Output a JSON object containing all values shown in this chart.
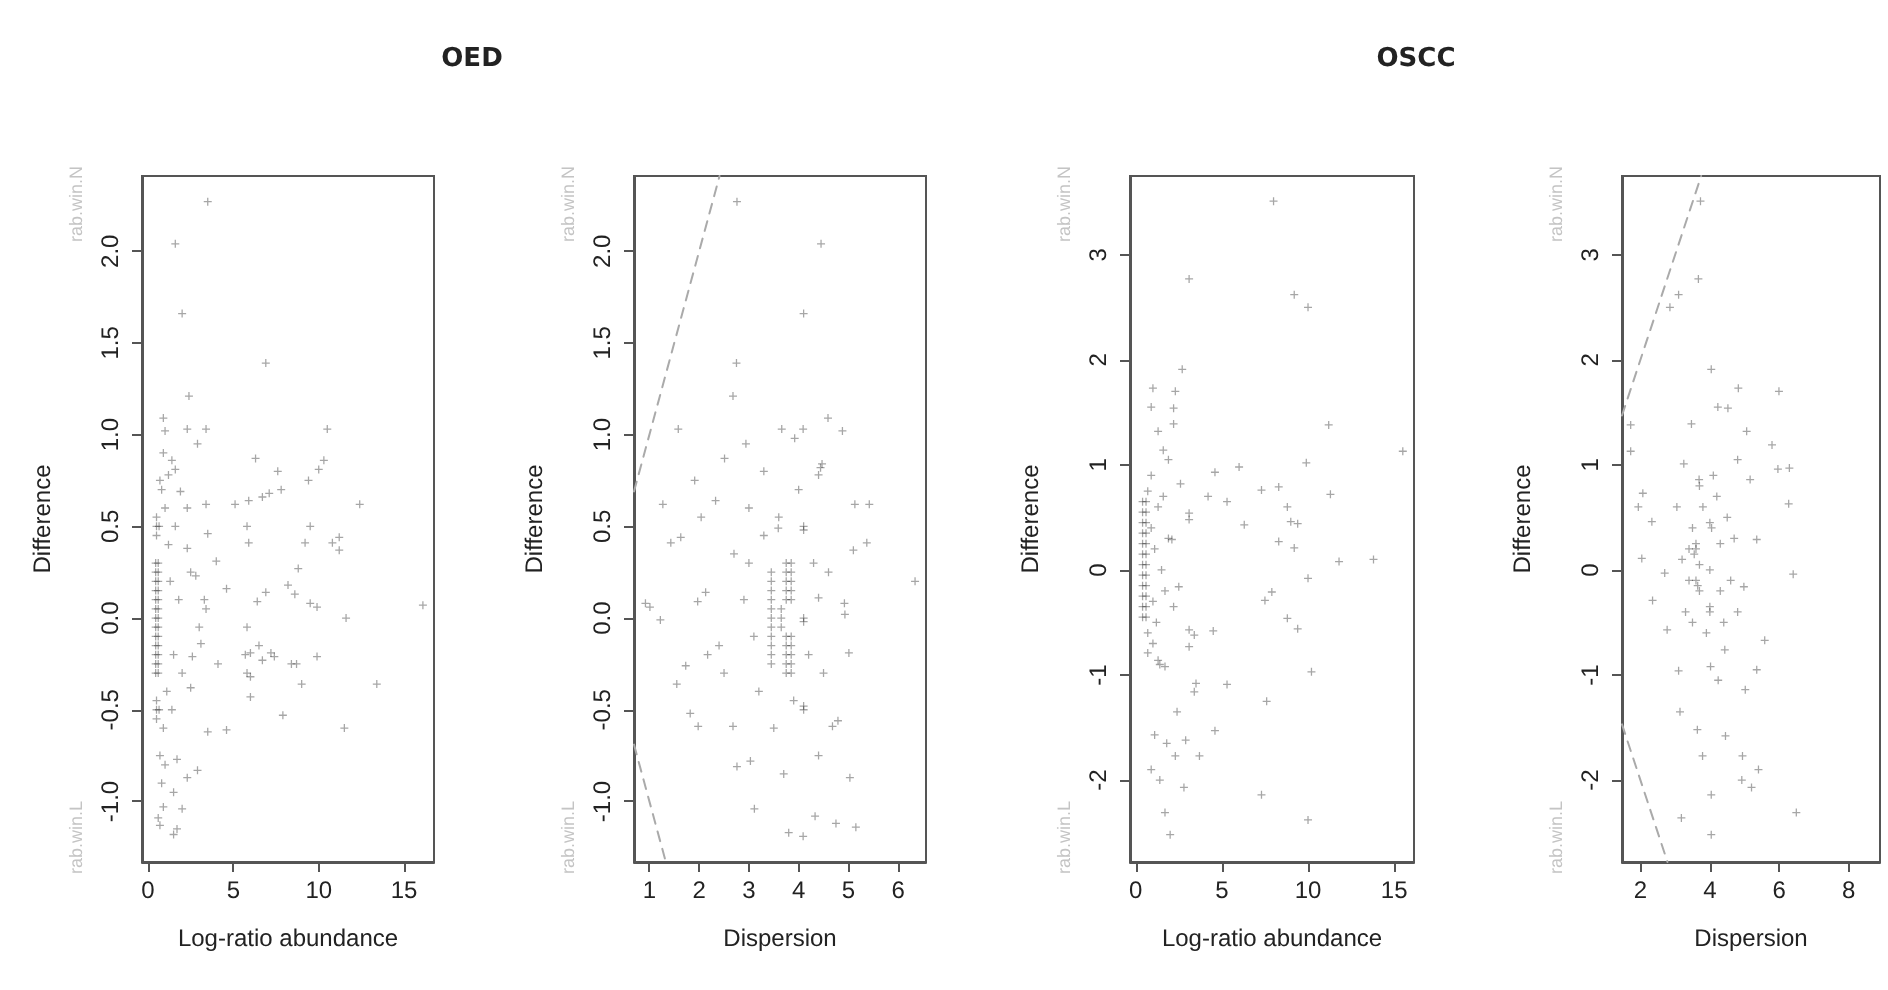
{
  "chart_data": [
    {
      "type": "scatter",
      "title": "OED",
      "xlabel": "Log-ratio abundance",
      "ylabel": "Difference",
      "annotations": [
        "rab.win.N",
        "rab.win.L"
      ],
      "marker": "cross",
      "xlim": [
        -0.35,
        16.75
      ],
      "xticks": [
        0,
        5,
        10,
        15
      ],
      "ylim": [
        -1.33,
        2.41
      ],
      "yticks": [
        {
          "value": -1,
          "label": "-1.0"
        },
        {
          "value": -0.5,
          "label": "-0.5"
        },
        {
          "value": 0,
          "label": "0.0"
        },
        {
          "value": 0.5,
          "label": "0.5"
        },
        {
          "value": 1,
          "label": "1.0"
        },
        {
          "value": 1.5,
          "label": "1.5"
        },
        {
          "value": 2,
          "label": "2.0"
        }
      ],
      "series": [
        {
          "color": "#000000",
          "x": [
            3.5,
            1.6,
            2.0,
            6.9,
            2.4,
            0.9,
            10.5,
            2.3,
            3.4,
            2.9,
            1.0,
            6.3,
            10.3,
            7.6,
            10.0,
            9.4,
            7.1,
            6.7,
            7.8,
            5.1,
            5.9,
            12.4,
            3.4,
            9.5,
            5.8,
            5.9,
            9.2,
            10.8,
            11.2,
            11.2,
            3.5,
            4.0,
            8.8,
            4.6,
            8.2,
            6.9,
            8.6,
            9.5,
            6.4,
            9.9,
            16.1,
            11.6,
            3.4,
            3.3,
            4.1,
            5.7,
            6.0,
            7.2,
            7.4,
            6.7,
            6.5,
            5.8,
            8.4,
            8.7,
            9.9,
            9.0,
            5.8,
            6.0,
            6.0,
            13.4,
            11.5,
            7.9,
            3.5,
            4.6,
            2.9,
            2.3,
            1.5,
            2.0,
            0.9,
            0.6,
            0.7,
            1.5,
            1.7,
            1.7,
            2.5,
            2.6,
            3.1,
            3.0,
            2.8,
            2.5,
            2.3,
            2.3,
            1.9,
            1.6,
            1.4,
            1.2,
            0.45,
            0.45,
            0.45,
            0.45,
            0.45,
            0.45,
            0.45,
            0.45,
            0.45,
            0.45,
            0.45,
            0.45,
            0.45,
            0.6,
            0.6,
            0.6,
            0.6,
            0.6,
            0.6,
            0.6,
            0.6,
            0.6,
            0.6,
            0.6,
            0.6,
            0.6,
            0.5,
            0.5,
            0.5,
            0.5,
            0.5,
            0.5,
            0.65,
            0.65,
            1.0,
            1.2,
            0.9,
            1.1,
            0.8,
            0.7,
            0.7,
            1.3,
            1.5,
            1.0,
            0.9,
            1.8,
            2.0,
            1.6,
            1.4,
            0.8
          ],
          "values": [
            2.27,
            2.04,
            1.66,
            1.39,
            1.21,
            1.09,
            1.03,
            1.03,
            1.03,
            0.95,
            1.02,
            0.87,
            0.86,
            0.8,
            0.81,
            0.75,
            0.68,
            0.66,
            0.7,
            0.62,
            0.64,
            0.62,
            0.62,
            0.5,
            0.5,
            0.41,
            0.41,
            0.41,
            0.44,
            0.37,
            0.46,
            0.31,
            0.27,
            0.16,
            0.18,
            0.14,
            0.13,
            0.08,
            0.09,
            0.06,
            0.07,
            0.0,
            0.05,
            0.1,
            -0.25,
            -0.2,
            -0.19,
            -0.19,
            -0.21,
            -0.23,
            -0.15,
            -0.05,
            -0.25,
            -0.25,
            -0.21,
            -0.36,
            -0.3,
            -0.32,
            -0.43,
            -0.36,
            -0.6,
            -0.53,
            -0.62,
            -0.61,
            -0.83,
            -0.87,
            -0.95,
            -1.04,
            -1.03,
            -1.09,
            -1.13,
            -1.18,
            -1.15,
            -0.77,
            -0.38,
            -0.21,
            -0.14,
            -0.05,
            0.23,
            0.25,
            0.38,
            0.6,
            0.69,
            0.81,
            0.86,
            0.78,
            -0.3,
            -0.25,
            -0.2,
            -0.15,
            -0.1,
            -0.05,
            0,
            0.05,
            0.1,
            0.15,
            0.2,
            0.25,
            0.3,
            -0.3,
            -0.25,
            -0.2,
            -0.15,
            -0.1,
            -0.05,
            0,
            0.05,
            0.1,
            0.15,
            0.2,
            0.25,
            0.3,
            -0.55,
            -0.5,
            -0.45,
            0.45,
            0.5,
            0.55,
            -0.5,
            0.5,
            0.6,
            0.4,
            -0.6,
            -0.4,
            0.7,
            -0.75,
            0.75,
            0.2,
            -0.2,
            -0.8,
            0.9,
            0.1,
            -0.3,
            0.5,
            -0.5,
            -0.9
          ]
        }
      ]
    },
    {
      "type": "scatter",
      "xlabel": "Dispersion",
      "ylabel": "Difference",
      "annotations": [
        "rab.win.N",
        "rab.win.L"
      ],
      "marker": "cross",
      "xlim": [
        0.69,
        6.56
      ],
      "xticks": [
        1,
        2,
        3,
        4,
        5,
        6
      ],
      "ylim": [
        -1.33,
        2.41
      ],
      "yticks": [
        {
          "value": -1,
          "label": "-1.0"
        },
        {
          "value": -0.5,
          "label": "-0.5"
        },
        {
          "value": 0,
          "label": "0.0"
        },
        {
          "value": 0.5,
          "label": "0.5"
        },
        {
          "value": 1,
          "label": "1.0"
        },
        {
          "value": 1.5,
          "label": "1.5"
        },
        {
          "value": 2,
          "label": "2.0"
        }
      ],
      "series": [
        {
          "color": "#000000",
          "x": [
            2.76,
            4.45,
            4.1,
            2.75,
            2.68,
            4.59,
            1.58,
            3.66,
            4.09,
            4.88,
            2.94,
            2.51,
            4.44,
            1.91,
            1.27,
            5.13,
            5.42,
            1.43,
            1.63,
            5.37,
            5.1,
            6.34,
            0.92,
            1.01,
            1.22,
            1.73,
            1.55,
            1.82,
            1.98,
            2.17,
            2.13,
            1.97,
            2.33,
            2.04,
            2.68,
            2.76,
            3.03,
            3.11,
            3.8,
            4.09,
            4.33,
            4.75,
            5.15,
            5.03,
            4.68,
            4.79,
            5.01,
            4.93,
            4.92,
            4.4,
            4.4,
            4.47,
            3.92,
            3.59,
            3.45,
            3.45,
            3.45,
            3.45,
            3.45,
            3.45,
            3.45,
            3.45,
            3.45,
            3.45,
            3.45,
            3.75,
            3.75,
            3.75,
            3.75,
            3.75,
            3.85,
            3.85,
            3.85,
            3.85,
            3.85,
            3.75,
            3.75,
            3.75,
            3.75,
            3.75,
            3.85,
            3.85,
            3.85,
            3.85,
            3.85,
            3.65,
            3.65,
            3.65,
            4.1,
            4.1,
            4.1,
            4.1,
            4.1,
            4.1,
            3.0,
            3.2,
            3.3,
            3.6,
            4.3,
            4.5,
            4.2,
            3.9,
            3.1,
            2.9,
            2.5,
            2.7,
            3.5,
            4.0,
            3.3,
            4.6,
            4.4,
            3.7,
            3.0,
            2.4
          ],
          "values": [
            2.27,
            2.04,
            1.66,
            1.39,
            1.21,
            1.09,
            1.03,
            1.03,
            1.03,
            1.02,
            0.95,
            0.87,
            0.82,
            0.75,
            0.62,
            0.62,
            0.62,
            0.41,
            0.44,
            0.41,
            0.37,
            0.2,
            0.08,
            0.06,
            -0.01,
            -0.26,
            -0.36,
            -0.52,
            -0.59,
            -0.2,
            0.14,
            0.09,
            0.64,
            0.55,
            -0.59,
            -0.81,
            -0.78,
            -1.04,
            -1.17,
            -1.19,
            -1.08,
            -1.12,
            -1.14,
            -0.87,
            -0.59,
            -0.56,
            -0.19,
            0.02,
            0.08,
            0.11,
            0.78,
            0.84,
            0.98,
            0.49,
            -0.25,
            -0.2,
            -0.15,
            -0.1,
            -0.05,
            0,
            0.05,
            0.1,
            0.15,
            0.2,
            0.25,
            0.1,
            0.15,
            0.2,
            0.25,
            0.3,
            0.1,
            0.15,
            0.2,
            0.25,
            0.3,
            -0.1,
            -0.15,
            -0.2,
            -0.25,
            -0.3,
            -0.1,
            -0.15,
            -0.2,
            -0.25,
            -0.3,
            0,
            0.05,
            -0.05,
            0.5,
            0.48,
            -0.5,
            -0.48,
            0,
            -0.02,
            0.3,
            -0.4,
            0.45,
            0.55,
            0.3,
            -0.3,
            -0.2,
            -0.45,
            -0.1,
            0.1,
            -0.3,
            0.35,
            -0.6,
            0.7,
            0.8,
            0.25,
            -0.75,
            -0.85,
            0.6,
            -0.15
          ]
        },
        {
          "type": "line",
          "color": "#aaaaaa",
          "line_style": "dashed",
          "marker": "none",
          "x": [
            0.69,
            2.41
          ],
          "values": [
            0.69,
            2.41
          ]
        },
        {
          "type": "line",
          "color": "#aaaaaa",
          "line_style": "dashed",
          "marker": "none",
          "x": [
            0.69,
            1.33
          ],
          "values": [
            -0.69,
            -1.33
          ]
        }
      ]
    },
    {
      "type": "scatter",
      "title": "OSCC",
      "xlabel": "Log-ratio abundance",
      "ylabel": "Difference",
      "annotations": [
        "rab.win.N",
        "rab.win.L"
      ],
      "marker": "cross",
      "xlim": [
        -0.33,
        16.15
      ],
      "xticks": [
        0,
        5,
        10,
        15
      ],
      "ylim": [
        -2.78,
        3.75
      ],
      "yticks": [
        -2,
        -1,
        0,
        1,
        2,
        3
      ],
      "series": [
        {
          "color": "#000000",
          "x": [
            8.0,
            3.1,
            9.2,
            10.0,
            2.7,
            11.2,
            2.3,
            1.0,
            0.9,
            2.2,
            2.2,
            1.3,
            15.5,
            6.0,
            9.9,
            4.6,
            8.3,
            7.3,
            11.3,
            4.2,
            5.3,
            8.8,
            9.0,
            9.4,
            6.3,
            8.3,
            9.2,
            11.8,
            13.8,
            10.0,
            7.9,
            7.5,
            8.8,
            9.4,
            4.5,
            3.1,
            3.4,
            3.1,
            10.2,
            3.5,
            3.4,
            5.3,
            7.6,
            2.4,
            1.1,
            1.8,
            2.9,
            4.6,
            3.7,
            2.3,
            0.9,
            1.4,
            2.8,
            7.3,
            1.7,
            2.0,
            10.0,
            3.1,
            3.1,
            2.6,
            1.9,
            1.6,
            2.1,
            2.5,
            2.2,
            1.7,
            1.3,
            0.7,
            0.4,
            0.4,
            0.4,
            0.4,
            0.4,
            0.4,
            0.4,
            0.4,
            0.4,
            0.4,
            0.4,
            0.4,
            0.6,
            0.6,
            0.6,
            0.6,
            0.6,
            0.6,
            0.6,
            0.6,
            0.6,
            0.6,
            0.6,
            0.6,
            0.7,
            0.7,
            0.9,
            1.0,
            1.1,
            1.2,
            0.9,
            1.0,
            1.3,
            1.5,
            1.7,
            1.9,
            1.4,
            1.6
          ],
          "values": [
            3.51,
            2.77,
            2.62,
            2.5,
            1.91,
            1.38,
            1.7,
            1.73,
            1.55,
            1.54,
            1.39,
            1.32,
            1.13,
            0.98,
            1.02,
            0.93,
            0.79,
            0.76,
            0.72,
            0.7,
            0.65,
            0.6,
            0.46,
            0.44,
            0.43,
            0.27,
            0.21,
            0.08,
            0.1,
            -0.08,
            -0.21,
            -0.29,
            -0.46,
            -0.56,
            -0.58,
            -0.57,
            -0.62,
            -0.73,
            -0.97,
            -1.08,
            -1.16,
            -1.09,
            -1.25,
            -1.35,
            -1.57,
            -1.65,
            -1.62,
            -1.53,
            -1.77,
            -1.77,
            -1.9,
            -2.0,
            -2.07,
            -2.14,
            -2.31,
            -2.52,
            -2.38,
            0.54,
            0.48,
            0.82,
            1.05,
            1.14,
            0.29,
            -0.16,
            -0.35,
            -0.92,
            -0.86,
            -0.79,
            -0.45,
            -0.35,
            -0.25,
            -0.15,
            -0.05,
            0.05,
            0.15,
            0.25,
            0.35,
            0.45,
            0.55,
            0.65,
            -0.45,
            -0.35,
            -0.25,
            -0.15,
            -0.05,
            0.05,
            0.15,
            0.25,
            0.35,
            0.45,
            0.55,
            0.65,
            0.75,
            -0.6,
            0.4,
            -0.3,
            0.2,
            -0.5,
            0.9,
            -0.7,
            0.6,
            0.0,
            -0.2,
            0.3,
            -0.9,
            0.7
          ]
        }
      ]
    },
    {
      "type": "scatter",
      "xlabel": "Dispersion",
      "ylabel": "Difference",
      "annotations": [
        "rab.win.N",
        "rab.win.L"
      ],
      "marker": "cross",
      "xlim": [
        1.47,
        8.9
      ],
      "xticks": [
        2,
        4,
        6,
        8
      ],
      "ylim": [
        -2.78,
        3.75
      ],
      "yticks": [
        -2,
        -1,
        0,
        1,
        2,
        3
      ],
      "series": [
        {
          "color": "#000000",
          "x": [
            3.73,
            3.67,
            3.1,
            2.85,
            4.04,
            4.82,
            5.99,
            1.72,
            1.72,
            4.23,
            4.52,
            3.47,
            5.06,
            5.79,
            3.25,
            6.29,
            5.96,
            2.07,
            1.94,
            6.27,
            2.33,
            2.04,
            2.35,
            6.4,
            2.7,
            5.58,
            2.77,
            3.1,
            5.35,
            3.14,
            5.02,
            3.64,
            4.45,
            3.79,
            4.94,
            5.4,
            4.92,
            5.2,
            4.04,
            3.18,
            6.49,
            4.04,
            4.24,
            4.02,
            4.43,
            4.98,
            5.35,
            5.16,
            4.8,
            3.69,
            3.05,
            3.6,
            3.6,
            3.7,
            4.0,
            4.0,
            4.0,
            4.3,
            4.3,
            3.4,
            3.4,
            3.5,
            3.8,
            4.2,
            4.5,
            4.6,
            4.4,
            3.9,
            3.3,
            3.2,
            3.5,
            4.1,
            3.7,
            4.7,
            4.8,
            3.6,
            3.65,
            3.55,
            3.7,
            4.05,
            4.0
          ],
          "values": [
            3.51,
            2.77,
            2.62,
            2.5,
            1.91,
            1.73,
            1.7,
            1.38,
            1.13,
            1.55,
            1.54,
            1.39,
            1.32,
            1.19,
            1.01,
            0.97,
            0.96,
            0.73,
            0.6,
            0.63,
            0.46,
            0.11,
            -0.29,
            -0.04,
            -0.03,
            -0.67,
            -0.57,
            -0.96,
            -0.95,
            -1.35,
            -1.14,
            -1.52,
            -1.58,
            -1.77,
            -1.77,
            -1.9,
            -2.0,
            -2.07,
            -2.14,
            -2.36,
            -2.31,
            -2.52,
            -1.05,
            -0.92,
            -0.76,
            -0.16,
            0.29,
            0.86,
            1.05,
            0.86,
            0.6,
            0.2,
            -0.1,
            -0.2,
            0.45,
            0.0,
            -0.35,
            -0.2,
            0.25,
            0.2,
            -0.1,
            0.4,
            0.6,
            0.7,
            0.5,
            -0.1,
            -0.5,
            -0.6,
            -0.4,
            0.1,
            -0.5,
            0.9,
            0.8,
            0.3,
            -0.4,
            0.25,
            -0.15,
            0.15,
            0.05,
            0.4,
            -0.4
          ]
        },
        {
          "type": "line",
          "color": "#aaaaaa",
          "line_style": "dashed",
          "marker": "none",
          "x": [
            1.47,
            3.75
          ],
          "values": [
            1.47,
            3.75
          ]
        },
        {
          "type": "line",
          "color": "#aaaaaa",
          "line_style": "dashed",
          "marker": "none",
          "x": [
            1.47,
            2.78
          ],
          "values": [
            -1.47,
            -2.78
          ]
        }
      ]
    }
  ]
}
